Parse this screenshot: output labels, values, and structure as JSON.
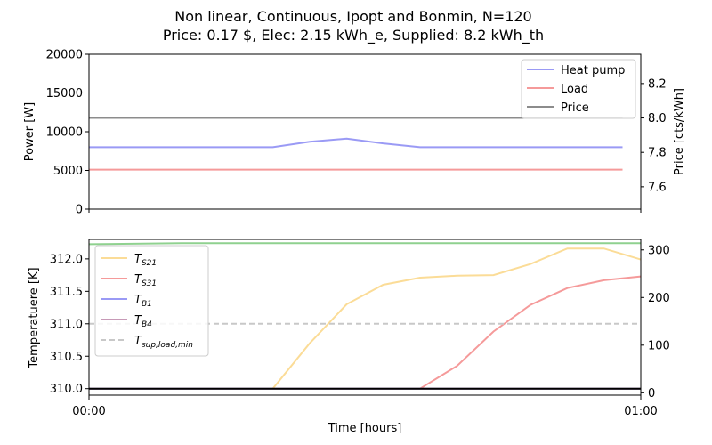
{
  "figure": {
    "title_line1": "Non linear, Continuous, Ipopt and Bonmin, N=120",
    "title_line2": "Price: 0.17 $, Elec: 2.15 kWh_e, Supplied: 8.2 kWh_th"
  },
  "colors": {
    "heat_pump": "#9a9af5",
    "load": "#f59a9a",
    "price": "#8c8c8c",
    "ts21": "#fbdc97",
    "ts31": "#f59a9a",
    "tb1": "#9a9af5",
    "tb4": "#c79ab7",
    "tsup": "#c8c8c8",
    "green": "#8fd18f"
  },
  "chart_data": [
    {
      "type": "line",
      "ylabel": "Power [W]",
      "ylabel_right": "Price [cts/kWh]",
      "ylim": [
        0,
        20000
      ],
      "yticks": [
        "0",
        "5000",
        "10000",
        "15000",
        "20000"
      ],
      "ylim_right": [
        7.47,
        8.37
      ],
      "yticks_right": [
        "7.6",
        "7.8",
        "8.0",
        "8.2"
      ],
      "xlim": [
        0,
        1
      ],
      "legend_position": "top-right",
      "series": [
        {
          "name": "Heat pump",
          "axis": "left",
          "x": [
            0,
            0.333,
            0.4,
            0.467,
            0.533,
            0.6,
            0.667,
            0.733,
            0.8,
            0.867,
            0.933,
            0.967
          ],
          "values": [
            8000,
            8000,
            8700,
            9100,
            8500,
            8000,
            8000,
            8000,
            8000,
            8000,
            8000,
            8000
          ]
        },
        {
          "name": "Load",
          "axis": "left",
          "x": [
            0,
            0.967
          ],
          "values": [
            5100,
            5100
          ]
        },
        {
          "name": "Price",
          "axis": "right",
          "x": [
            0,
            0.967
          ],
          "values": [
            8.0,
            8.0
          ]
        }
      ]
    },
    {
      "type": "line",
      "ylabel": "Temperatuere [K]",
      "ylim": [
        309.9,
        312.3
      ],
      "yticks": [
        "310.0",
        "310.5",
        "311.0",
        "311.5",
        "312.0"
      ],
      "ylim_right": [
        -5,
        322
      ],
      "yticks_right": [
        "0",
        "100",
        "200",
        "300"
      ],
      "xlim": [
        0,
        1
      ],
      "xticks": [
        "00:00",
        "01:00"
      ],
      "xlabel": "Time [hours]",
      "legend_position": "top-left",
      "series": [
        {
          "name": "T_{S21}",
          "label_main": "T",
          "label_sub": "S21",
          "x": [
            0.333,
            0.4,
            0.467,
            0.533,
            0.6,
            0.667,
            0.733,
            0.8,
            0.867,
            0.933,
            1.0
          ],
          "values": [
            310.0,
            310.7,
            311.3,
            311.6,
            311.71,
            311.74,
            311.75,
            311.92,
            312.16,
            312.16,
            311.99
          ]
        },
        {
          "name": "T_{S31}",
          "label_main": "T",
          "label_sub": "S31",
          "x": [
            0.6,
            0.667,
            0.733,
            0.8,
            0.867,
            0.933,
            1.0
          ],
          "values": [
            310.0,
            310.35,
            310.88,
            311.29,
            311.55,
            311.67,
            311.73
          ]
        },
        {
          "name": "T_{B1}",
          "label_main": "T",
          "label_sub": "B1",
          "x": [
            0,
            1.0
          ],
          "values": [
            310.0,
            310.0
          ]
        },
        {
          "name": "T_{B4}",
          "label_main": "T",
          "label_sub": "B4",
          "x": [
            0,
            1.0
          ],
          "values": [
            310.0,
            310.0
          ]
        },
        {
          "name": "T_{sup,load,min}",
          "label_main": "T",
          "label_sub": "sup,load,min",
          "x": [
            0,
            1.0
          ],
          "values": [
            311.0,
            311.0
          ],
          "dashed": true
        },
        {
          "axis": "right",
          "color_key": "green",
          "x": [
            0,
            0.167,
            0.333,
            0.5,
            0.667,
            0.833,
            1.0
          ],
          "values": [
            312,
            314,
            314,
            314,
            314,
            314,
            314
          ]
        }
      ]
    }
  ]
}
